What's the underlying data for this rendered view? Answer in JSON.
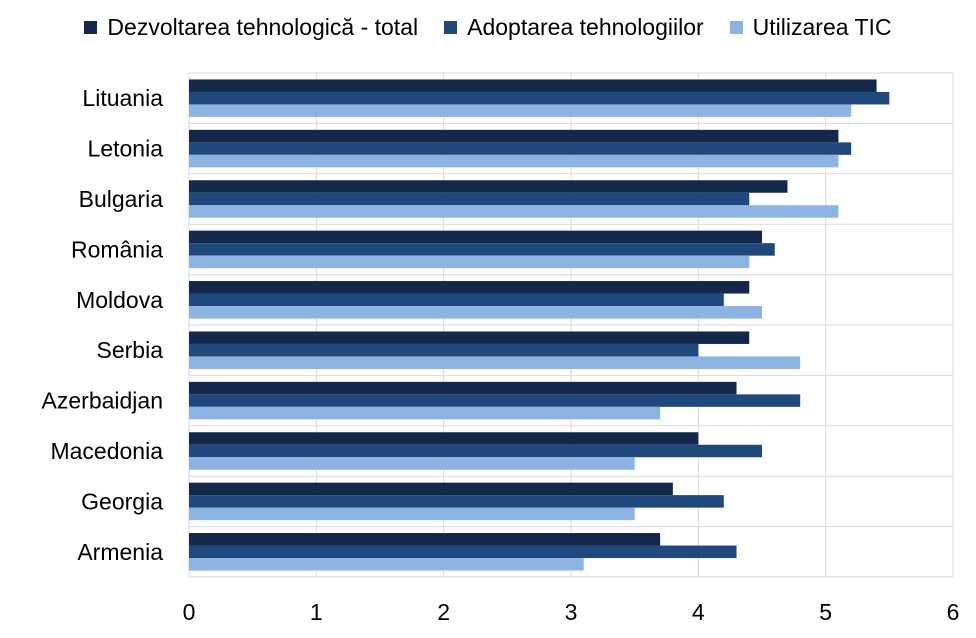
{
  "chart_data": {
    "type": "bar",
    "orientation": "horizontal",
    "categories": [
      "Lituania",
      "Letonia",
      "Bulgaria",
      "România",
      "Moldova",
      "Serbia",
      "Azerbaidjan",
      "Macedonia",
      "Georgia",
      "Armenia"
    ],
    "series": [
      {
        "name": "Dezvoltarea tehnologică - total",
        "color": "#14284b",
        "values": [
          5.4,
          5.1,
          4.7,
          4.5,
          4.4,
          4.4,
          4.3,
          4.0,
          3.8,
          3.7
        ]
      },
      {
        "name": "Adoptarea tehnologiilor",
        "color": "#1f497d",
        "values": [
          5.5,
          5.2,
          4.4,
          4.6,
          4.2,
          4.0,
          4.8,
          4.5,
          4.2,
          4.3
        ]
      },
      {
        "name": "Utilizarea TIC",
        "color": "#8db3e2",
        "values": [
          5.2,
          5.1,
          5.1,
          4.4,
          4.5,
          4.8,
          3.7,
          3.5,
          3.5,
          3.1
        ]
      }
    ],
    "xticks": [
      "0",
      "1",
      "2",
      "3",
      "4",
      "5",
      "6"
    ],
    "xlim": [
      0,
      6
    ],
    "grid": true,
    "legend_position": "top"
  }
}
